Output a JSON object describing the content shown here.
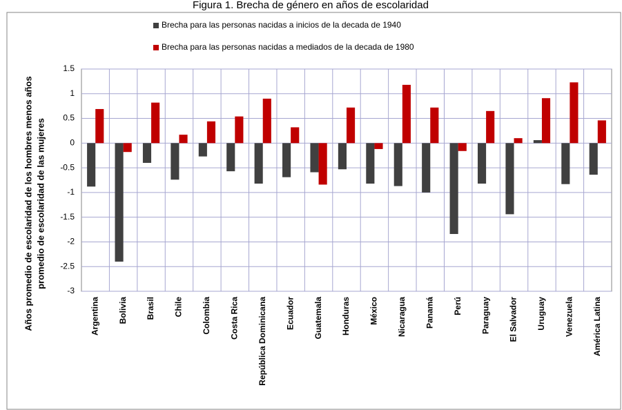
{
  "chart_data": {
    "type": "bar",
    "title": "Figura 1. Brecha de género en años de escolaridad",
    "ylabel": [
      "Años promedio de escolaridad de los hombres menos años",
      "promedio de escolaridad de las mujeres"
    ],
    "categories": [
      "Argentina",
      "Bolivia",
      "Brasil",
      "Chile",
      "Colombia",
      "Costa Rica",
      "República Dominicana",
      "Ecuador",
      "Guatemala",
      "Honduras",
      "México",
      "Nicaragua",
      "Panamá",
      "Perú",
      "Paraguay",
      "El Salvador",
      "Uruguay",
      "Venezuela",
      "América Latina"
    ],
    "series": [
      {
        "name": "Brecha para las personas nacidas a inicios de la decada de 1940",
        "color": "#404040",
        "values": [
          -0.88,
          -2.4,
          -0.4,
          -0.74,
          -0.27,
          -0.57,
          -0.82,
          -0.69,
          -0.59,
          -0.53,
          -0.82,
          -0.87,
          -1.0,
          -1.84,
          -0.82,
          -1.44,
          0.06,
          -0.83,
          -0.64
        ]
      },
      {
        "name": "Brecha para las personas nacidas a mediados de la decada de 1980",
        "color": "#c00000",
        "values": [
          0.69,
          -0.18,
          0.82,
          0.17,
          0.44,
          0.54,
          0.9,
          0.32,
          -0.84,
          0.72,
          -0.12,
          1.18,
          0.72,
          -0.16,
          0.65,
          0.1,
          0.91,
          1.23,
          0.46
        ]
      }
    ],
    "ylim": [
      -3,
      1.5
    ],
    "yticks": [
      1.5,
      1,
      0.5,
      0,
      -0.5,
      -1,
      -1.5,
      -2,
      -2.5,
      -3
    ],
    "grid": true
  }
}
